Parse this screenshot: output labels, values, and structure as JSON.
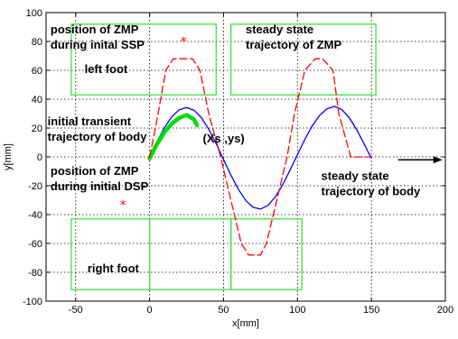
{
  "chart_data": {
    "type": "line",
    "title": "",
    "xlabel": "x[mm]",
    "ylabel": "y[mm]",
    "xlim": [
      -70,
      200
    ],
    "ylim": [
      -100,
      100
    ],
    "xticks": [
      -50,
      0,
      50,
      100,
      150,
      200
    ],
    "yticks": [
      100,
      80,
      60,
      40,
      20,
      0,
      -20,
      -40,
      -60,
      -80,
      -100
    ],
    "grid": true,
    "grid_style": "dotted",
    "series": [
      {
        "name": "",
        "color": "#0000ff",
        "style": "solid",
        "x": [
          0,
          5,
          10,
          15,
          20,
          25,
          30,
          35,
          40,
          45,
          50,
          55,
          60,
          65,
          70,
          75,
          80,
          85,
          90,
          95,
          100,
          105,
          110,
          115,
          120,
          125,
          130,
          135,
          140,
          145,
          150
        ],
        "y": [
          0,
          10.6,
          20.2,
          27.8,
          32.6,
          34.2,
          32.4,
          27.2,
          19.2,
          9.2,
          -1.8,
          -12.6,
          -22.4,
          -30.2,
          -35.0,
          -36.2,
          -33.6,
          -27.8,
          -19.4,
          -9.2,
          1.6,
          12.2,
          21.6,
          28.8,
          33.4,
          35.0,
          32.8,
          27.2,
          19.0,
          9.0,
          -1.0
        ]
      },
      {
        "name": "",
        "color": "#00dd00",
        "style": "thick",
        "x": [
          0,
          5,
          10,
          15,
          20,
          25,
          30,
          32
        ],
        "y": [
          -1,
          9,
          17,
          23,
          27,
          29,
          26,
          22
        ]
      },
      {
        "name": "",
        "color": "#ff0000",
        "style": "dashed",
        "x": [
          0,
          4,
          11,
          16,
          20,
          29,
          34,
          40,
          48,
          55,
          62,
          67,
          75,
          79,
          86,
          93,
          98,
          105,
          112,
          117,
          124,
          128,
          136,
          150
        ],
        "y": [
          0,
          20,
          60,
          68,
          68,
          68,
          60,
          30,
          0,
          -30,
          -60,
          -68,
          -68,
          -60,
          -30,
          0,
          30,
          60,
          68,
          68,
          60,
          30,
          0,
          0
        ]
      }
    ],
    "zmp_markers": [
      {
        "x": 23,
        "y": 80,
        "symbol": "*"
      },
      {
        "x": -18,
        "y": -33,
        "symbol": "*"
      }
    ],
    "foot_rectangles": [
      {
        "name": "left-foot-box-initial",
        "x0": -53,
        "x1": 45,
        "y0": 43,
        "y1": 92
      },
      {
        "name": "left-foot-box-steady",
        "x0": 55,
        "x1": 153,
        "y0": 43,
        "y1": 92
      },
      {
        "name": "right-foot-box-1",
        "x0": -53,
        "x1": 0,
        "y0": -43,
        "y1": -92
      },
      {
        "name": "right-foot-box-2",
        "x0": 0,
        "x1": 55,
        "y0": -43,
        "y1": -92
      },
      {
        "name": "right-foot-box-3",
        "x0": 55,
        "x1": 103,
        "y0": -43,
        "y1": -92
      }
    ],
    "annotations": [
      {
        "name": "annot-zmp-ssp",
        "lines": [
          "position of ZMP",
          "during inital SSP"
        ],
        "x": -67,
        "y": 85.5
      },
      {
        "name": "annot-steady-zmp",
        "lines": [
          "steady state",
          "trajectory of ZMP"
        ],
        "x": 65,
        "y": 85.5
      },
      {
        "name": "annot-left-foot",
        "lines": [
          "left foot"
        ],
        "x": -44,
        "y": 58
      },
      {
        "name": "annot-initial-transient",
        "lines": [
          "initial transient",
          "trajectory of body"
        ],
        "x": -69,
        "y": 22
      },
      {
        "name": "annot-xs-ys",
        "lines": [
          "(Xs ,ys)"
        ],
        "x": 36,
        "y": 10
      },
      {
        "name": "annot-zmp-dsp",
        "lines": [
          "position of ZMP",
          "during initial DSP"
        ],
        "x": -67,
        "y": -12.5
      },
      {
        "name": "annot-steady-body",
        "lines": [
          "steady state",
          "trajectory of body"
        ],
        "x": 116,
        "y": -16
      },
      {
        "name": "annot-right-foot",
        "lines": [
          "right foot"
        ],
        "x": -42,
        "y": -80
      }
    ],
    "direction_arrow": {
      "x0": 168,
      "x1": 198,
      "y": -2
    }
  }
}
